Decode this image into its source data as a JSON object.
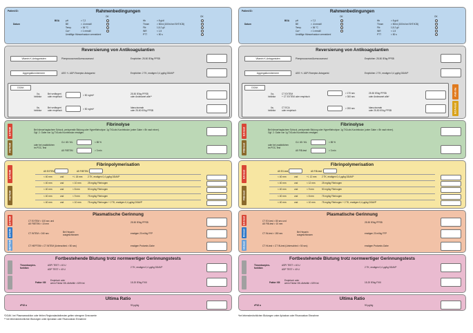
{
  "left": {
    "patient_id": "Patient ID:",
    "cond_title": "Rahmenbedingungen",
    "ok1": "OK",
    "ok2": "OK",
    "datum": "Datum",
    "bga": "BGA",
    "params_left": [
      "pH",
      "BE",
      "Temp.",
      "Ca²⁺",
      "(ionisiert)"
    ],
    "values_left": [
      "> 7,2",
      "> -6 mmol/l",
      "> 36 °C",
      "> 1 mmol/l",
      "Unstillige Hämorrhaskon vermeiden!"
    ],
    "params_right": [
      "Hb",
      "Throm",
      "Fib",
      "INR",
      "PTT"
    ],
    "values_right": [
      "> 8 g/dl",
      "> 50/nl (100/nl bei SHT/ICB)",
      "1,5-2 g/l",
      "< 1,5",
      "< 50 s"
    ],
    "rev_title": "Reversierung von Antikoagulantien",
    "vka_label": "Vitamin K-Antagonisten",
    "vka_drug": "Phenprocoumon/Acenocoumarol",
    "vka_dose": "Empfohlen: 25-50 IE/kg PPSB",
    "agg_label": "Aggregationshemmer",
    "agg_drug": "ASS +/- ADP-Rezeptor-Antagonist",
    "agg_dose": "Empfohlen: 2 TK, erwägen 0,4 µg/kg DDAVP",
    "doak_label": "DOAK",
    "doak_r1a": "Xa-",
    "doak_r1b": "Inhibitor",
    "doak_r1c": "Bei verlängert",
    "doak_r1d": "oder empirisch",
    "doak_r1e": "> 50 ng/ml*",
    "doak_r1f": "25-50 IE/kg PPSB",
    "doak_r1g": "oder Andexanet alfa**",
    "doak_r2a": "IIa-",
    "doak_r2b": "Inhibitor",
    "doak_r2c": "Bei verlängert",
    "doak_r2d": "oder empirisch",
    "doak_r2e": "> 50 ng/ml*",
    "doak_r2f": "Idarucizumab",
    "doak_r2g": "oder 25-50 IE/kg PPSB",
    "fib_title": "Fibrinolyse",
    "fib_tag1": "EXTEM",
    "fib_tag2": "FIBTEM",
    "fib_text1": "Bei hämorrhagischem Schock, perioperativ Blutung oder Hyperfibrinolyse: 1g TXA als Kurzinfusion (unter Gabe > 8h nach einer).",
    "fib_text2": "Ggf. 2. Gabe von 1g TXA als Kurzinfusion erwägen.",
    "fib_m1": "oder bei zusätzlichen",
    "fib_m2": "im POC-Test",
    "fib_ml": "CLI 45 / ML",
    "fib_a5": "A5 FIBTEM",
    "fib_v1": "< 85 %",
    "fib_v2": "> 3 min",
    "poly_title": "Fibrinpolymerisation",
    "poly_tag1": "EXTEM",
    "poly_tag2": "FIBTEM",
    "poly_a5": "A5 EXTEM",
    "poly_a5b": "A5 FIBTEM",
    "poly_rows": [
      [
        "< 40 mm",
        "und",
        "+/- 18 mm",
        "2 TK, erwägen 0,4 µg/kg DDAVP"
      ],
      [
        "< 40 mm",
        "und",
        "< 10 mm",
        "25 mg/kg Fibrinogen"
      ],
      [
        "< 40 mm",
        "und",
        "< 8 mm",
        "50 mg/kg Fibrinogen"
      ],
      [
        "< 40 mm",
        "und",
        "< 9 mm",
        "75 mg/kg Fibrinogen"
      ],
      [
        "< 40 mm",
        "und",
        "< 10 mm",
        "75 mg/kg Fibrinogen + 2 TK, erwägen 0,4 µg/kg DDAVP"
      ]
    ],
    "plas_title": "Plasmatische Gerinnung",
    "plas_tag1": "EXTEM",
    "plas_tag2": "INTEM",
    "plas_tag3": "HEPTEM",
    "plas_r1a": "CT EXTEM > 100 sec und",
    "plas_r1b": "A5 FIBTEM > 10 mm",
    "plas_r1c": "25-50 IE/kg PPSB",
    "plas_r2a": "CT INTEM > 240 sec",
    "plas_r2b": "Bei Heparin",
    "plas_r2c": "ausgeschlossen",
    "plas_r2d": "erwägen 20 ml/kg FFP",
    "plas_r3a": "CT HEPTEM < CT INTEM (Unterschied > 50 sec)",
    "plas_r3b": "erwägen Protamin-Gabe",
    "fort_title": "Fortbestehende Blutung trotz normwertiger Gerinnungstests",
    "fort_tag": "",
    "fort_tf1": "Thrombozyten-",
    "fort_tf2": "funktion",
    "fort_r1a": "ASPI TEST < 40 U",
    "fort_r1b": "ADP TEST < 40 U",
    "fort_r1c": "2 TK, erwägen 0,4 µg/kg DDAVP",
    "fort_xiii": "Faktor XIII",
    "fort_r2a": "Empirisch oder",
    "fort_r2b": "wenn Faktor XIII-Aktivität < 60% ist",
    "fort_r2c": "15-20 IE/kg FXIII",
    "ult_title": "Ultima Ratio",
    "ult_r1": "rFVII a",
    "ult_r2": "90 µg/kg",
    "foot1": "*DOAK: bei Plasmaesraktion oder fehlen Regionalanästhesien gelten strengere Grenzwerte",
    "foot2": "** bei lebensbedrohlichen Blutungen unter Apixaban oder Rivaroxaban Einnahme"
  },
  "right": {
    "patient_id": "Patient ID:",
    "cond_title": "Rahmenbedingungen",
    "ok1": "OK",
    "ok2": "OK",
    "datum": "Datum",
    "bga": "BGA",
    "params_left": [
      "pH",
      "BE",
      "Temp.",
      "Ca²⁺",
      "(ionisiert)"
    ],
    "values_left": [
      "> 7,2",
      "> -6 mmol/l",
      "> 36 °C",
      "> 1 mmol/l",
      "Unstillige Hämorrhaskon vermeiden!"
    ],
    "params_right": [
      "Hb",
      "Throm",
      "Fib",
      "INR",
      "PTT"
    ],
    "values_right": [
      "> 8 g/dl",
      "> 50/nl (100/nl bei SHT/ICB)",
      "1,5-2 g/l",
      "< 1,5",
      "< 50 s"
    ],
    "rev_title": "Reversierung von Antikoagulantien",
    "vka_label": "Vitamin K-Antagonisten",
    "vka_drug": "Phenprocoumon/Acenocoumarol",
    "vka_dose": "Empfohlen: 25-50 IE/kg PPSB",
    "agg_label": "Aggregationshemmer",
    "agg_drug": "ASS +/- ADP-Rezeptor-Antagonist",
    "agg_dose": "Empfohlen: 2 TK, erwägen 0,4 µg/kg DDAVP",
    "doak_label": "DOAK",
    "doak_tag1": "Anti-Xa",
    "doak_tag2": "ECA-test",
    "doak_r1a": "Xa-",
    "doak_r1b": "Inhibitor",
    "doak_r1c": "CT EXTEM",
    "doak_r1d": "+ CT EXTEM oder empirisch",
    "doak_r1e": "> 170 sec",
    "doak_r1f": "> 300 sec",
    "doak_r1g": "25-50 IE/kg PPSB",
    "doak_r1h": "oder Andexanet alfa*",
    "doak_r2a": "IIa-",
    "doak_r2b": "Inhibitor",
    "doak_r2c": "CT ECA",
    "doak_r2d": "oder empirisch",
    "doak_r2e": "> 200 sec",
    "doak_r2f": "Idarucizumab",
    "doak_r2g": "oder 25-50 IE/kg PPSB",
    "fib_title": "Fibrinolyse",
    "fib_tag1": "EX-test",
    "fib_tag2": "FIB-test",
    "fib_text1": "Bei hämorrhagischem Schock, perioperativ Blutung oder Hyperfibrinolyse: 1g TXA als Kurzinfusion (unter Gabe > 8h nach einer).",
    "fib_text2": "Ggf. 2. Gabe von 1g TXA als Kurzinfusion erwägen.",
    "fib_m1": "oder bei zusätzlichen",
    "fib_m2": "im POC-Test",
    "fib_ml": "CLI 45 / ML",
    "fib_a5": "A5 FIB-test",
    "fib_v1": "< 85 %",
    "fib_v2": "> 3 min",
    "poly_title": "Fibrinpolymerisation",
    "poly_tag1": "EX-test",
    "poly_tag2": "FIB-test",
    "poly_a5": "A5 EX-test",
    "poly_a5b": "A5 FIB-test",
    "poly_rows": [
      [
        "< 40 mm",
        "und",
        "+/- 12 mm",
        "2 TK, erwägen 0,4 µg/kg DDAVP"
      ],
      [
        "< 40 mm",
        "und",
        "< 12 mm",
        "25 mg/kg Fibrinogen"
      ],
      [
        "< 40 mm",
        "und",
        "< 9 mm",
        "50 mg/kg Fibrinogen"
      ],
      [
        "< 40 mm",
        "und",
        "< 8 mm",
        "75 mg/kg Fibrinogen"
      ],
      [
        "< 40 mm",
        "und",
        "< 10 mm",
        "75 mg/kg Fibrinogen + 2 TK, erwägen 0,4 µg/kg DDAVP"
      ]
    ],
    "plas_title": "Plasmatische Gerinnung",
    "plas_tag1": "EX-test",
    "plas_tag2": "IN-test",
    "plas_tag3": "Hi-test",
    "plas_r1a": "CT EX-test > 80 sec und",
    "plas_r1b": "A5 FIB-test > 10 mm",
    "plas_r1c": "25-50 IE/kg PPSB",
    "plas_r2a": "CT IN-test > 150 sec",
    "plas_r2b": "Bei Heparin",
    "plas_r2c": "ausgeschlossen",
    "plas_r2d": "erwägen 20 ml/kg FFP",
    "plas_r3a": "CT Hi-test < CT IN-test (Unterschied > 50 sec)",
    "plas_r3b": "erwägen Protamin-Gabe",
    "fort_title": "Fortbestehende Blutung trotz normwertiger Gerinnungstests",
    "fort_tf1": "Thrombozyten-",
    "fort_tf2": "funktion",
    "fort_r1a": "ASPI TEST < 40 U",
    "fort_r1b": "ADP TEST < 40 U",
    "fort_r1c": "2 TK, erwägen 0,4 µg/kg DDAVP",
    "fort_xiii": "Faktor XIII",
    "fort_r2a": "Empirisch oder",
    "fort_r2b": "wenn Faktor XIII-Aktivität < 60% ist",
    "fort_r2c": "15-20 IE/kg FXIII",
    "ult_title": "Ultima Ratio",
    "ult_r1": "rFVII a",
    "ult_r2": "90 µg/kg",
    "foot1": "*bei lebensbedrohlichen Blutungen unter Apixaban oder Rivaroxaban Einnahme"
  },
  "colors": {
    "extem": "#d94636",
    "fibtem": "#8a6a2c",
    "intem": "#2e78c8",
    "heptem": "#6aa0d8",
    "antixa": "#e07a1e",
    "eca": "#d9a21a",
    "grey": "#a0a0a0"
  }
}
